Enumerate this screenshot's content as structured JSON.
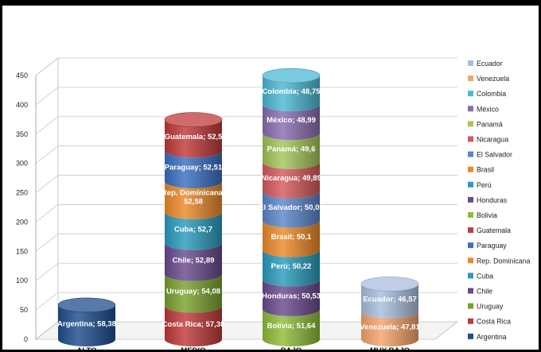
{
  "chart_data": {
    "type": "bar",
    "style": "stacked-3d-cylinder",
    "categories": [
      "ALTO",
      "MEDIO",
      "BAJO",
      "MUY BAJO"
    ],
    "ylim": [
      0,
      450
    ],
    "yticks": [
      "0",
      "50",
      "100",
      "150",
      "200",
      "250",
      "300",
      "350",
      "400",
      "450"
    ],
    "grid": true,
    "legend_position": "right",
    "series": [
      {
        "name": "Argentina",
        "color": "#1f4e8c",
        "values": [
          58.38,
          0,
          0,
          0
        ],
        "labels": [
          "Argentina; 58,38",
          "",
          "",
          ""
        ]
      },
      {
        "name": "Costa Rica",
        "color": "#c0393b",
        "values": [
          0,
          57.38,
          0,
          0
        ],
        "labels": [
          "",
          "Costa Rica; 57,38",
          "",
          ""
        ]
      },
      {
        "name": "Uruguay",
        "color": "#7aa12f",
        "values": [
          0,
          54.08,
          0,
          0
        ],
        "labels": [
          "",
          "Uruguay; 54,08",
          "",
          ""
        ]
      },
      {
        "name": "Chile",
        "color": "#6a4a8e",
        "values": [
          0,
          52.89,
          0,
          0
        ],
        "labels": [
          "",
          "Chile; 52,89",
          "",
          ""
        ]
      },
      {
        "name": "Cuba",
        "color": "#2a9bbd",
        "values": [
          0,
          52.7,
          0,
          0
        ],
        "labels": [
          "",
          "Cuba; 52,7",
          "",
          ""
        ]
      },
      {
        "name": "Rep. Dominicana",
        "color": "#ec8a2a",
        "values": [
          0,
          52.58,
          0,
          0
        ],
        "labels": [
          "",
          "Rep. Dominicana; 52,58",
          "",
          ""
        ]
      },
      {
        "name": "Paraguay",
        "color": "#3a6fc2",
        "values": [
          0,
          52.51,
          0,
          0
        ],
        "labels": [
          "",
          "Paraguay; 52,51",
          "",
          ""
        ]
      },
      {
        "name": "Guatemala",
        "color": "#c0393b",
        "values": [
          0,
          52.5,
          0,
          0
        ],
        "labels": [
          "",
          "Guatemala; 52,5",
          "",
          ""
        ]
      },
      {
        "name": "Bolivia",
        "color": "#8fbc3a",
        "values": [
          0,
          0,
          51.64,
          0
        ],
        "labels": [
          "",
          "",
          "Bolivia; 51,64",
          ""
        ]
      },
      {
        "name": "Honduras",
        "color": "#6a4a8e",
        "values": [
          0,
          0,
          50.53,
          0
        ],
        "labels": [
          "",
          "",
          "Honduras; 50,53",
          ""
        ]
      },
      {
        "name": "Perú",
        "color": "#2a9bbd",
        "values": [
          0,
          0,
          50.22,
          0
        ],
        "labels": [
          "",
          "",
          "Perú; 50,22",
          ""
        ]
      },
      {
        "name": "Brasil",
        "color": "#ec8a2a",
        "values": [
          0,
          0,
          50.1,
          0
        ],
        "labels": [
          "",
          "",
          "Brasil; 50,1",
          ""
        ]
      },
      {
        "name": "El Salvador",
        "color": "#5b86c9",
        "values": [
          0,
          0,
          50.09,
          0
        ],
        "labels": [
          "",
          "",
          "El Salvador; 50,09",
          ""
        ]
      },
      {
        "name": "Nicaragua",
        "color": "#d65a5c",
        "values": [
          0,
          0,
          49.89,
          0
        ],
        "labels": [
          "",
          "",
          "Nicaragua; 49,89",
          ""
        ]
      },
      {
        "name": "Panamá",
        "color": "#a4c65a",
        "values": [
          0,
          0,
          49.6,
          0
        ],
        "labels": [
          "",
          "",
          "Panamá; 49,6",
          ""
        ]
      },
      {
        "name": "México",
        "color": "#8a6db0",
        "values": [
          0,
          0,
          48.99,
          0
        ],
        "labels": [
          "",
          "",
          "México; 48,99",
          ""
        ]
      },
      {
        "name": "Colombia",
        "color": "#4db8d4",
        "values": [
          0,
          0,
          48.75,
          0
        ],
        "labels": [
          "",
          "",
          "Colombia; 48,75",
          ""
        ]
      },
      {
        "name": "Venezuela",
        "color": "#f5a36a",
        "values": [
          0,
          0,
          0,
          47.81
        ],
        "labels": [
          "",
          "",
          "",
          "Venezuela; 47,81"
        ]
      },
      {
        "name": "Ecuador",
        "color": "#a9bedd",
        "values": [
          0,
          0,
          0,
          46.57
        ],
        "labels": [
          "",
          "",
          "",
          "Ecuador; 46,57"
        ]
      }
    ]
  }
}
